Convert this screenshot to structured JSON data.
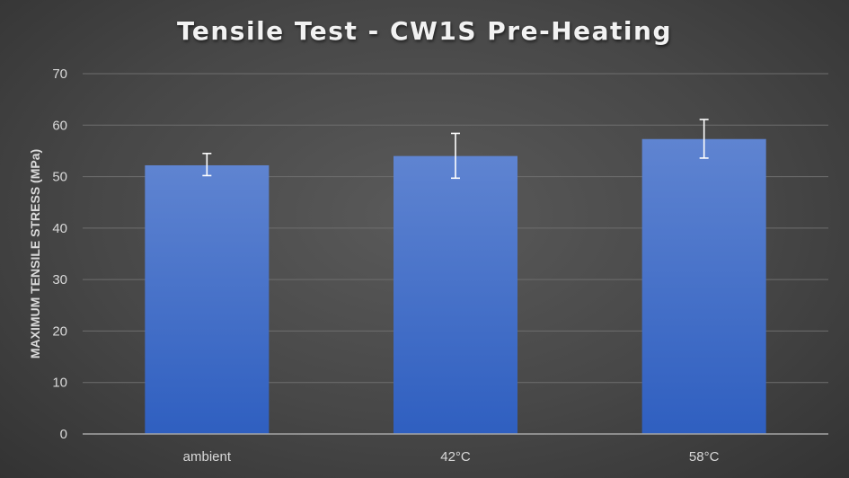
{
  "chart_data": {
    "type": "bar",
    "title": "Tensile Test - CW1S Pre-Heating",
    "xlabel": "",
    "ylabel": "MAXIMUM TENSILE STRESS (MPa)",
    "categories": [
      "ambient",
      "42°C",
      "58°C"
    ],
    "values": [
      52.2,
      54.0,
      57.3
    ],
    "error_low": [
      50.2,
      49.7,
      53.6
    ],
    "error_high": [
      54.5,
      58.4,
      61.1
    ],
    "ylim": [
      0,
      70
    ],
    "yticks": [
      0,
      10,
      20,
      30,
      40,
      50,
      60,
      70
    ],
    "grid": true,
    "legend": "none",
    "colors": {
      "bar_top": "#5f84d1",
      "bar_bottom": "#2f5fc0",
      "error_bar": "#ffffff",
      "grid": "#6e6e6e",
      "axis": "#a6a6a6"
    }
  }
}
